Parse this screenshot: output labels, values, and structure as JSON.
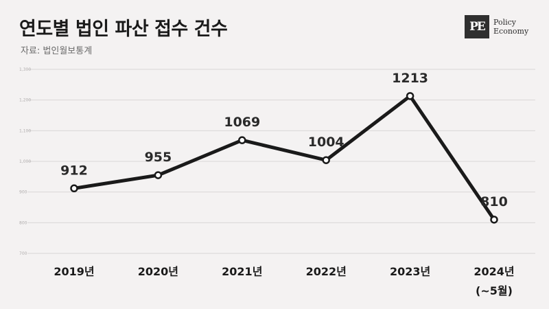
{
  "title": "연도별 법인 파산 접수 건수",
  "source": "자료: 법인월보통계",
  "logo": {
    "mark": "PE",
    "line1": "Policy",
    "line2": "Economy"
  },
  "colors": {
    "line": "#1a1a1a",
    "grid": "#d9d6d6",
    "background": "#f4f2f2"
  },
  "chart_data": {
    "type": "line",
    "categories": [
      "2019년",
      "2020년",
      "2021년",
      "2022년",
      "2023년",
      "2024년"
    ],
    "category_sublabels": [
      "",
      "",
      "",
      "",
      "",
      "(~5월)"
    ],
    "values": [
      912,
      955,
      1069,
      1004,
      1213,
      810
    ],
    "data_labels": [
      "912",
      "955",
      "1069",
      "1004",
      "1213",
      "810"
    ],
    "yticks": [
      700,
      800,
      900,
      1000,
      1100,
      1200,
      1300
    ],
    "ytick_labels": [
      "700",
      "800",
      "900",
      "1,000",
      "1,100",
      "1,200",
      "1,300"
    ],
    "ylim": [
      700,
      1300
    ],
    "grid": true,
    "markers": "hollow-circle"
  }
}
